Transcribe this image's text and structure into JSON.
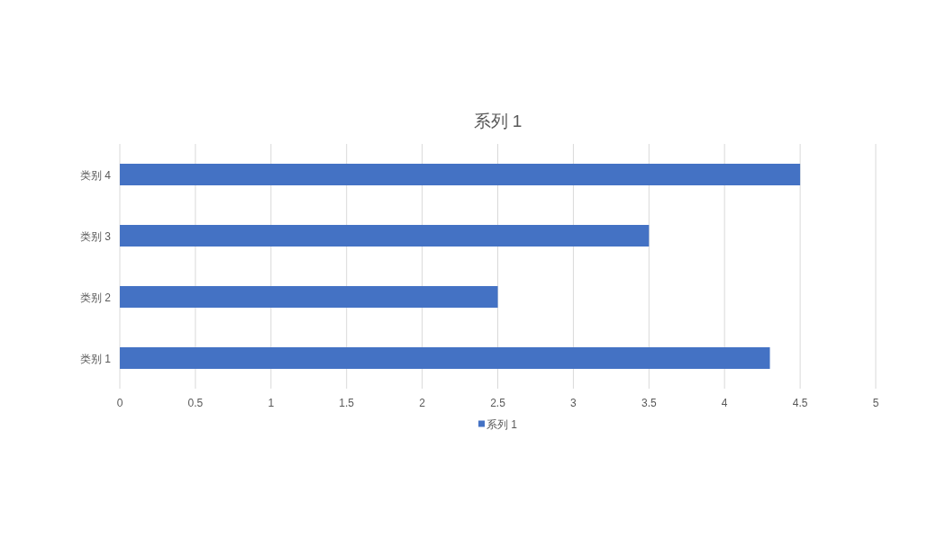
{
  "chart_data": {
    "type": "bar",
    "orientation": "horizontal",
    "title": "系列 1",
    "categories": [
      "类别 4",
      "类别 3",
      "类别 2",
      "类别 1"
    ],
    "series": [
      {
        "name": "系列 1",
        "color": "#4472c4",
        "values": [
          4.5,
          3.5,
          2.5,
          4.3
        ]
      }
    ],
    "xlim": [
      0,
      5
    ],
    "xticks": [
      0,
      0.5,
      1,
      1.5,
      2,
      2.5,
      3,
      3.5,
      4,
      4.5,
      5
    ],
    "grid": "x",
    "legend": "bottom"
  }
}
